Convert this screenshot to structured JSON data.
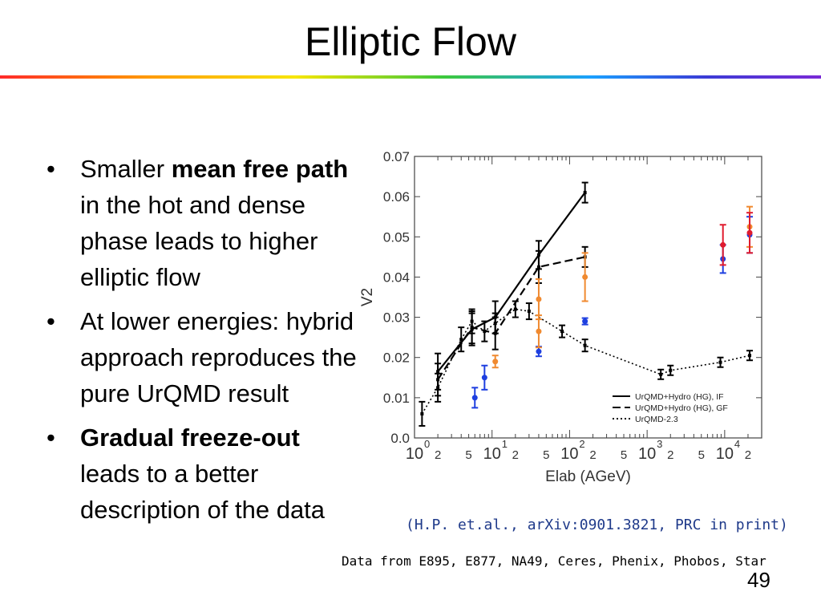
{
  "slide": {
    "title": "Elliptic Flow",
    "page_number": "49",
    "citation": "(H.P. et.al., arXiv:0901.3821, PRC in print)",
    "data_source": "Data from E895, E877, NA49, Ceres, Phenix, Phobos, Star"
  },
  "bullets": [
    {
      "parts": [
        {
          "text": "Smaller ",
          "bold": false
        },
        {
          "text": "mean free path",
          "bold": true
        },
        {
          "text": " in the hot and dense phase leads to higher elliptic flow",
          "bold": false
        }
      ]
    },
    {
      "parts": [
        {
          "text": "At lower energies: hybrid approach reproduces the pure UrQMD result",
          "bold": false
        }
      ]
    },
    {
      "parts": [
        {
          "text": "Gradual freeze-out",
          "bold": true
        },
        {
          "text": " leads to a better description of the data",
          "bold": false
        }
      ]
    }
  ],
  "chart_data": {
    "type": "scatter",
    "ylabel": "V2",
    "xlabel": "Elab (AGeV)",
    "x_scale": "log",
    "xlim": [
      1,
      30000
    ],
    "ylim": [
      0,
      0.07
    ],
    "y_ticks": [
      0.0,
      0.01,
      0.02,
      0.03,
      0.04,
      0.05,
      0.06,
      0.07
    ],
    "y_tick_labels": [
      "0.0",
      "0.01",
      "0.02",
      "0.03",
      "0.04",
      "0.05",
      "0.06",
      "0.07"
    ],
    "x_major_ticks": [
      {
        "value": 1,
        "label": "10",
        "exp": "0"
      },
      {
        "value": 10,
        "label": "10",
        "exp": "1"
      },
      {
        "value": 100,
        "label": "10",
        "exp": "2"
      },
      {
        "value": 1000,
        "label": "10",
        "exp": "3"
      },
      {
        "value": 10000,
        "label": "10",
        "exp": "4"
      }
    ],
    "x_minor_labels": [
      {
        "value": 2,
        "label": "2"
      },
      {
        "value": 5,
        "label": "5"
      },
      {
        "value": 20,
        "label": "2"
      },
      {
        "value": 50,
        "label": "5"
      },
      {
        "value": 200,
        "label": "2"
      },
      {
        "value": 500,
        "label": "5"
      },
      {
        "value": 2000,
        "label": "2"
      },
      {
        "value": 5000,
        "label": "5"
      },
      {
        "value": 20000,
        "label": "2"
      }
    ],
    "grid": false,
    "legend_position": "bottom-right",
    "series": [
      {
        "name": "UrQMD+Hydro (HG), IF",
        "style": "solid",
        "color": "#000000",
        "points": [
          {
            "x": 2,
            "y": 0.0165,
            "err": 0.0045
          },
          {
            "x": 5.5,
            "y": 0.027,
            "err": 0.004
          },
          {
            "x": 11,
            "y": 0.03,
            "err": 0.004
          },
          {
            "x": 40,
            "y": 0.0455,
            "err": 0.0035
          },
          {
            "x": 158,
            "y": 0.061,
            "err": 0.0025
          }
        ]
      },
      {
        "name": "UrQMD+Hydro (HG), GF",
        "style": "dashed",
        "color": "#000000",
        "points": [
          {
            "x": 2,
            "y": 0.0145,
            "err": 0.004
          },
          {
            "x": 5.5,
            "y": 0.0275,
            "err": 0.004
          },
          {
            "x": 11,
            "y": 0.026,
            "err": 0.004
          },
          {
            "x": 40,
            "y": 0.0425,
            "err": 0.004
          },
          {
            "x": 158,
            "y": 0.045,
            "err": 0.0025
          }
        ]
      },
      {
        "name": "UrQMD-2.3",
        "style": "dotted",
        "color": "#000000",
        "points": [
          {
            "x": 1.25,
            "y": 0.006,
            "err": 0.003
          },
          {
            "x": 2,
            "y": 0.0125,
            "err": 0.0035
          },
          {
            "x": 4,
            "y": 0.0245,
            "err": 0.003
          },
          {
            "x": 5.5,
            "y": 0.029,
            "err": 0.003
          },
          {
            "x": 8,
            "y": 0.0265,
            "err": 0.0025
          },
          {
            "x": 11,
            "y": 0.0285,
            "err": 0.0025
          },
          {
            "x": 20,
            "y": 0.032,
            "err": 0.002
          },
          {
            "x": 30,
            "y": 0.0315,
            "err": 0.002
          },
          {
            "x": 80,
            "y": 0.0265,
            "err": 0.0015
          },
          {
            "x": 158,
            "y": 0.023,
            "err": 0.0015
          },
          {
            "x": 1500,
            "y": 0.0158,
            "err": 0.0012
          },
          {
            "x": 2000,
            "y": 0.0168,
            "err": 0.0012
          },
          {
            "x": 8800,
            "y": 0.0188,
            "err": 0.0012
          },
          {
            "x": 21000,
            "y": 0.0205,
            "err": 0.0012
          }
        ]
      },
      {
        "name": "",
        "style": "markers",
        "color": "#1e3fe0",
        "points": [
          {
            "x": 6,
            "y": 0.01,
            "err": 0.0025
          },
          {
            "x": 8,
            "y": 0.015,
            "err": 0.003
          },
          {
            "x": 40,
            "y": 0.0215,
            "err": 0.0012
          },
          {
            "x": 158,
            "y": 0.029,
            "err": 0.0008
          },
          {
            "x": 9500,
            "y": 0.0445,
            "err": 0.0035
          },
          {
            "x": 21000,
            "y": 0.0505,
            "err": 0.0045
          }
        ]
      },
      {
        "name": "",
        "style": "markers",
        "color": "#f08a30",
        "points": [
          {
            "x": 11,
            "y": 0.019,
            "err": 0.0015
          },
          {
            "x": 40,
            "y": 0.0265,
            "err": 0.004
          },
          {
            "x": 40,
            "y": 0.0345,
            "err": 0.005
          },
          {
            "x": 158,
            "y": 0.04,
            "err": 0.006
          },
          {
            "x": 21000,
            "y": 0.0525,
            "err": 0.005
          }
        ]
      },
      {
        "name": "",
        "style": "markers",
        "color": "#e01b2e",
        "points": [
          {
            "x": 9500,
            "y": 0.048,
            "err": 0.005
          },
          {
            "x": 21000,
            "y": 0.051,
            "err": 0.005
          }
        ]
      }
    ]
  }
}
